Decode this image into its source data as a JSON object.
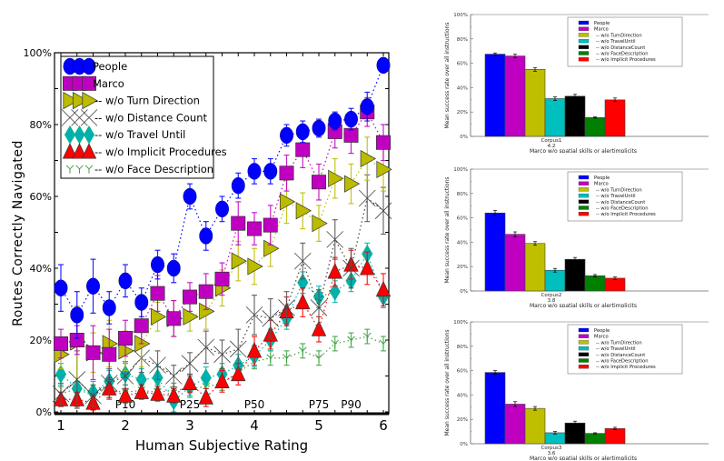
{
  "chart_data": [
    {
      "type": "line",
      "title": "",
      "xlabel": "Human Subjective Rating",
      "ylabel": "Routes Correctly Navigated",
      "xlim": [
        0.9,
        6.1
      ],
      "ylim": [
        0,
        100
      ],
      "xticks": [
        "1",
        "2",
        "3",
        "4",
        "5",
        "6"
      ],
      "yticks": [
        "0%",
        "20%",
        "40%",
        "60%",
        "80%",
        "100%"
      ],
      "legend_position": "top-left",
      "annotations": [
        {
          "text": "P10",
          "x": 2.0
        },
        {
          "text": "P25",
          "x": 3.0
        },
        {
          "text": "P50",
          "x": 4.0
        },
        {
          "text": "P75",
          "x": 5.0
        },
        {
          "text": "P90",
          "x": 5.5
        }
      ],
      "x": [
        1,
        1.25,
        1.5,
        1.75,
        2,
        2.25,
        2.5,
        2.75,
        3,
        3.25,
        3.5,
        3.75,
        4,
        4.25,
        4.5,
        4.75,
        5,
        5.25,
        5.5,
        5.75,
        6
      ],
      "series": [
        {
          "name": "People",
          "color": "#0000ff",
          "marker": "circle",
          "values": [
            34.5,
            27,
            35,
            29,
            36.5,
            30.5,
            41,
            40,
            60,
            49,
            56.5,
            63,
            67,
            67,
            77,
            78,
            79,
            81,
            81.5,
            85,
            96.5
          ],
          "errors": [
            6.5,
            6.5,
            7.5,
            4.5,
            4.5,
            4,
            4,
            4,
            3.5,
            4,
            3.5,
            3.5,
            3.5,
            3.5,
            3,
            3,
            2.5,
            2.5,
            3,
            4,
            2
          ]
        },
        {
          "name": "Marco",
          "color": "#c000c0",
          "marker": "square",
          "values": [
            19,
            20,
            16.5,
            16,
            20.5,
            24,
            33,
            26,
            32,
            33.5,
            37,
            52.5,
            51,
            52,
            66.5,
            73,
            64,
            78,
            77,
            83.5,
            75
          ],
          "errors": [
            4,
            4,
            7.5,
            7,
            5,
            5,
            5,
            5,
            4,
            5,
            4.5,
            6,
            4.5,
            5.5,
            5,
            5,
            5,
            4.5,
            5,
            4,
            5
          ]
        },
        {
          "name": "-- w/o Turn Direction",
          "color": "#bbbb00",
          "marker": "triangle-right",
          "values": [
            16,
            19.5,
            16.5,
            19,
            17,
            19,
            26.5,
            26,
            26.5,
            28,
            34.5,
            42,
            40.5,
            45.5,
            58.5,
            56,
            52.5,
            65,
            63.5,
            70.5,
            67.5
          ],
          "errors": [
            4,
            10,
            5.5,
            6.5,
            5.5,
            6.5,
            4,
            5,
            4,
            5,
            5,
            5.5,
            5,
            5,
            6,
            5,
            5,
            5.5,
            5.5,
            6,
            6
          ]
        },
        {
          "name": "-- w/o Distance Count",
          "color": "#404040",
          "marker": "x",
          "values": [
            5,
            9,
            4.5,
            8,
            10,
            15,
            13,
            10,
            13.5,
            18,
            16,
            17.5,
            27,
            26,
            29,
            42,
            29,
            48,
            40,
            59.5,
            56
          ],
          "errors": [
            3,
            8,
            3,
            4,
            4,
            4,
            4,
            3,
            3,
            4.5,
            4,
            5.5,
            5.5,
            5.5,
            4.5,
            5,
            5,
            5.5,
            5.5,
            6.5,
            6.5
          ]
        },
        {
          "name": "-- w/o Travel Until",
          "color": "#00b0b0",
          "marker": "diamond",
          "values": [
            10.5,
            6.5,
            5.5,
            8.5,
            10.5,
            9,
            9.5,
            3,
            7,
            9.5,
            10.5,
            13,
            15.5,
            20,
            26,
            36,
            32,
            33.5,
            36.5,
            44,
            32
          ],
          "errors": [
            3,
            3,
            3,
            3,
            3,
            3,
            3,
            3,
            3,
            3,
            3,
            3,
            3,
            3,
            3,
            3,
            3,
            3,
            3,
            3,
            3
          ]
        },
        {
          "name": "-- w/o Implicit Procedures",
          "color": "#ff0000",
          "marker": "triangle-up",
          "values": [
            3.5,
            3.5,
            2.5,
            6.5,
            4.5,
            5.5,
            5,
            4.5,
            8,
            4,
            8.5,
            10.5,
            17,
            21.5,
            28,
            30.5,
            23,
            39,
            41,
            40,
            34
          ],
          "errors": [
            2,
            2,
            2,
            3,
            2,
            2,
            2,
            2,
            2.5,
            2.5,
            3,
            3,
            4,
            4,
            4,
            4,
            3.5,
            4,
            4,
            4.5,
            4.5
          ]
        },
        {
          "name": "-- w/o Face Description",
          "color": "#40a040",
          "marker": "tri-down",
          "values": [
            5,
            6.5,
            4.5,
            6,
            5.5,
            6,
            5.5,
            6,
            6.5,
            7,
            8,
            11,
            14,
            15,
            15,
            17,
            15,
            19,
            20,
            21,
            19
          ],
          "errors": [
            2,
            2,
            2,
            2,
            2,
            2,
            2,
            2,
            2,
            2,
            2,
            2,
            2,
            2,
            2,
            2,
            2,
            2,
            2,
            2,
            2
          ]
        }
      ]
    },
    {
      "type": "bar",
      "title": "",
      "categories": [
        "Corpus1\n4.2"
      ],
      "category_label": "Corpus1",
      "category_sublabel": "4.2",
      "xlabel": "Marco w/o spatial skills or alertimplicits",
      "ylabel": "Mean success rate over all instructions",
      "ylim": [
        0,
        100
      ],
      "yticks": [
        "0%",
        "20%",
        "40%",
        "60%",
        "80%",
        "100%"
      ],
      "legend_position": "top-right",
      "series": [
        {
          "name": "People",
          "color": "#0000ff",
          "value": 67.5,
          "error": 1
        },
        {
          "name": "Marco",
          "color": "#c000c0",
          "value": 66,
          "error": 1.5
        },
        {
          "name": "-- w/o TurnDirection",
          "color": "#bfbf00",
          "value": 55,
          "error": 1.5
        },
        {
          "name": "-- w/o TravelUntil",
          "color": "#00bfbf",
          "value": 31,
          "error": 1.5
        },
        {
          "name": "-- w/o DistanceCount",
          "color": "#000000",
          "value": 33,
          "error": 1.5
        },
        {
          "name": "-- w/o FaceDescription",
          "color": "#008000",
          "value": 15.5,
          "error": 0.5
        },
        {
          "name": "-- w/o Implicit Procedures",
          "color": "#ff0000",
          "value": 30,
          "error": 1.5
        }
      ]
    },
    {
      "type": "bar",
      "title": "",
      "categories": [
        "Corpus2\n3.8"
      ],
      "category_label": "Corpus2",
      "category_sublabel": "3.8",
      "xlabel": "Marco w/o spatial skills or alertimplicits",
      "ylabel": "Mean success rate over all instructions",
      "ylim": [
        0,
        100
      ],
      "yticks": [
        "0%",
        "20%",
        "40%",
        "60%",
        "80%",
        "100%"
      ],
      "legend_position": "top-right",
      "series": [
        {
          "name": "People",
          "color": "#0000ff",
          "value": 64,
          "error": 2
        },
        {
          "name": "Marco",
          "color": "#c000c0",
          "value": 46.5,
          "error": 2
        },
        {
          "name": "-- w/o TurnDirection",
          "color": "#bfbf00",
          "value": 39,
          "error": 1.5
        },
        {
          "name": "-- w/o TravelUntil",
          "color": "#00bfbf",
          "value": 17,
          "error": 1.5
        },
        {
          "name": "-- w/o DistanceCount",
          "color": "#000000",
          "value": 26,
          "error": 1.5
        },
        {
          "name": "-- w/o FaceDescription",
          "color": "#008000",
          "value": 12.5,
          "error": 1
        },
        {
          "name": "-- w/o Implicit Procedures",
          "color": "#ff0000",
          "value": 10.5,
          "error": 1
        }
      ]
    },
    {
      "type": "bar",
      "title": "",
      "categories": [
        "Corpus3\n3.6"
      ],
      "category_label": "Corpus3",
      "category_sublabel": "3.6",
      "xlabel": "Marco w/o spatial skills or alertimplicits",
      "ylabel": "Mean success rate over all instructions",
      "ylim": [
        0,
        100
      ],
      "yticks": [
        "0%",
        "20%",
        "40%",
        "60%",
        "80%",
        "100%"
      ],
      "legend_position": "top-right",
      "series": [
        {
          "name": "People",
          "color": "#0000ff",
          "value": 58.5,
          "error": 1.5
        },
        {
          "name": "Marco",
          "color": "#c000c0",
          "value": 32.5,
          "error": 2
        },
        {
          "name": "-- w/o TurnDirection",
          "color": "#bfbf00",
          "value": 29,
          "error": 1.5
        },
        {
          "name": "-- w/o TravelUntil",
          "color": "#00bfbf",
          "value": 9,
          "error": 1
        },
        {
          "name": "-- w/o DistanceCount",
          "color": "#000000",
          "value": 17,
          "error": 1.5
        },
        {
          "name": "-- w/o FaceDescription",
          "color": "#008000",
          "value": 8.5,
          "error": 0.5
        },
        {
          "name": "-- w/o Implicit Procedures",
          "color": "#ff0000",
          "value": 12.5,
          "error": 1
        }
      ]
    }
  ]
}
